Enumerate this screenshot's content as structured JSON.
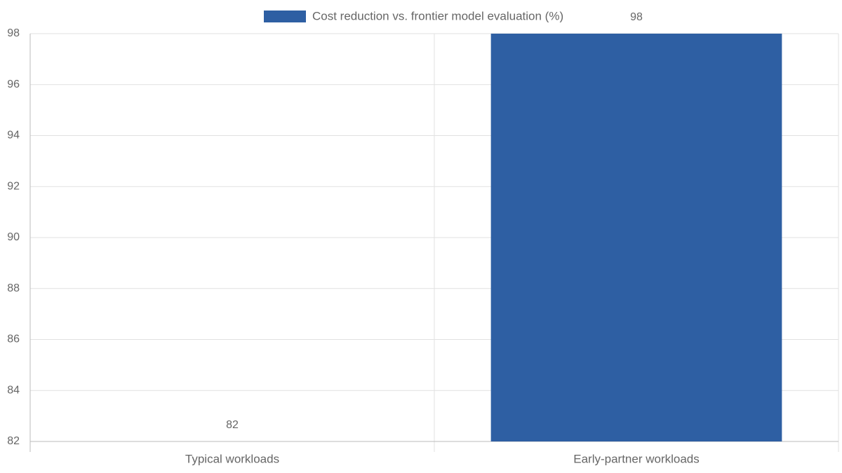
{
  "chart_data": {
    "type": "bar",
    "categories": [
      "Typical workloads",
      "Early-partner workloads"
    ],
    "series": [
      {
        "name": "Cost reduction vs. frontier model evaluation (%)",
        "color": "#2e5fa3",
        "values": [
          82,
          98
        ]
      }
    ],
    "ylim": [
      82,
      98
    ],
    "yticks": [
      82,
      84,
      86,
      88,
      90,
      92,
      94,
      96,
      98
    ],
    "grid": true,
    "legend": "top"
  }
}
